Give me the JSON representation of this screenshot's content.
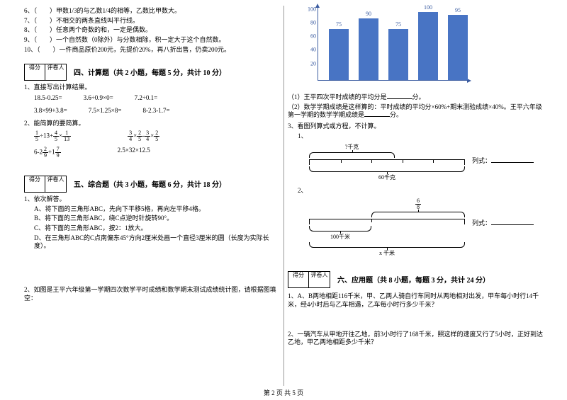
{
  "left": {
    "tf": [
      "（　　）甲数1/3的与乙数1/4的相等，乙数比甲数大。",
      "（　　）不相交的两条直线叫平行线。",
      "（　　）任意两个奇数的和，一定是偶数。",
      "（　　）一个自然数（0除外）与分数相除，积一定大于这个自然数。",
      "（　　）一件商品原价200元，先提价20%，再八折出售，仍卖200元。"
    ],
    "tf_nums": [
      "6、",
      "7、",
      "8、",
      "9、",
      "10、"
    ],
    "score_labels": [
      "得分",
      "评卷人"
    ],
    "sect4": "四、计算题（共 2 小题，每题 5 分，共计 10 分）",
    "q4_1": "1、直接写出计算结果。",
    "calc1": [
      "18.5-0.25=",
      "3.6÷0.9×0=",
      "7.2÷0.1="
    ],
    "calc2": [
      "3.8×99+3.8=",
      "7.5×1.25×8=",
      "8-2.3-1.7="
    ],
    "q4_2": "2、能简算的要简算。",
    "simpA1": "÷13+",
    "simpA2": "×",
    "simpB1": "×",
    "simpB2": "-",
    "simpB3": "×",
    "simpC1": "6-2",
    "simpC2": "+1",
    "simpD": "2.5×32×12.5",
    "sect5": "五、综合题（共 3 小题，每题 6 分，共计 18 分）",
    "q5_1": "1、依次解答。",
    "q5_1a": "A、将下面的三角形ABC，先向下平移5格，再向左平移4格。",
    "q5_1b": "B、将下面的三角形ABC，绕C点逆时针旋转90°。",
    "q5_1c": "C、将下面的三角形ABC，按2：1放大。",
    "q5_1d": "D、在三角形ABC的C点南偏东45°方向2厘米处画一个直径3厘米的圆（长度为实际长度）。",
    "q5_2": "2、如图是王平六年级第一学期四次数学平时成绩和数学期末测试成绩统计图，请根据图填空："
  },
  "right": {
    "chart": {
      "ylabels": [
        "20",
        "40",
        "60",
        "80",
        "100"
      ],
      "values": [
        75,
        90,
        75,
        100,
        95
      ],
      "value_labels": [
        "75",
        "90",
        "75",
        "100",
        "95"
      ],
      "bar_color": "#4874c4",
      "axis_color": "#3a5ba0",
      "ymax": 110
    },
    "chart_q1a": "（1）王平四次平时成绩的平均分是",
    "chart_q1b": "分。",
    "chart_q2a": "（2）数学学期成绩是这样算的：平时成绩的平均分×60%+期末测验成绩×40%。王平六年级第一学期的数学学期成绩是",
    "chart_q2b": "分。",
    "q3": "3、看图列算式或方程，不计算。",
    "n1": "1、",
    "d1_top": "?千克",
    "d1_bot": "60千克",
    "d1_formula": "列式：",
    "n2": "2、",
    "d2_top_num": "6",
    "d2_top_den": "8",
    "d2_mid": "100千米",
    "d2_bot": "x 千米",
    "d2_formula": "列式：",
    "score_labels": [
      "得分",
      "评卷人"
    ],
    "sect6": "六、应用题（共 8 小题，每题 3 分，共计 24 分）",
    "q6_1": "1、A、B两地相距116千米，甲、乙两人骑自行车同时从两地相对出发，甲车每小时行14千米，经4小时后与乙车相遇，乙车每小时行多少千米？",
    "q6_2": "2、一辆汽车从甲地开往乙地，前3小时行了168千米，照这样的速度又行了5小时，正好到达乙地，甲乙两地相距多少千米？"
  },
  "footer": "第 2 页 共 5 页"
}
